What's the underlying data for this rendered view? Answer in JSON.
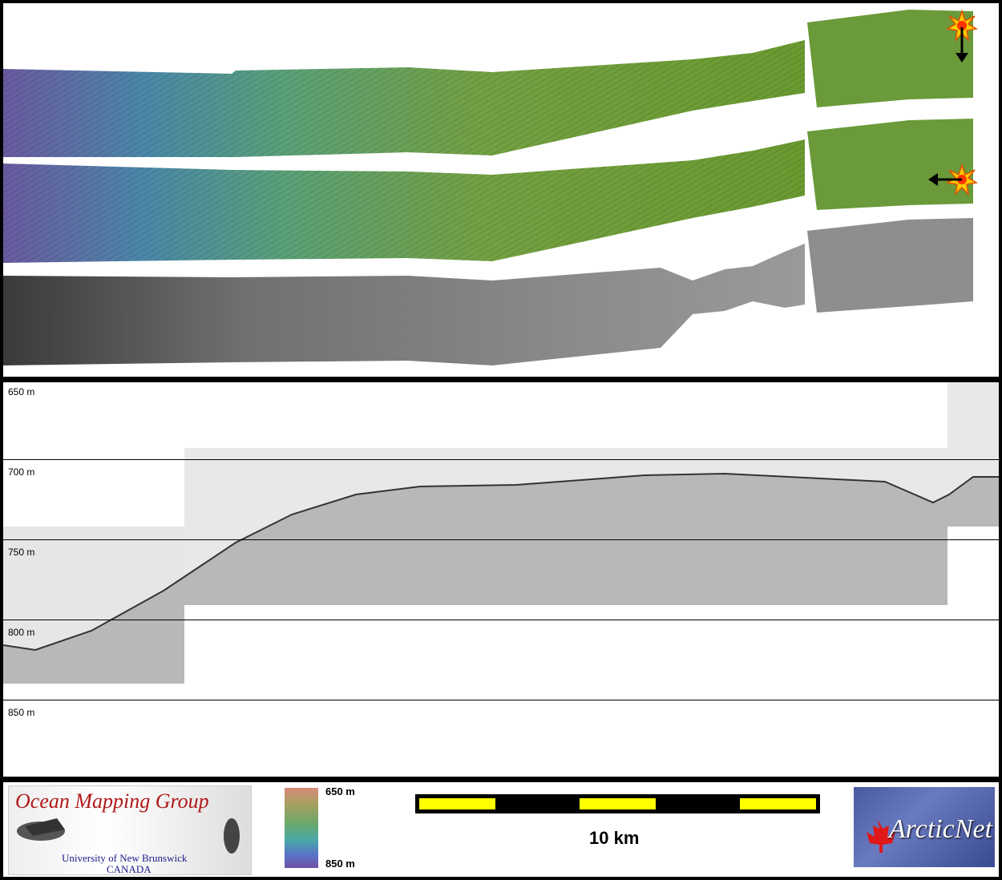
{
  "profile": {
    "depth_labels": [
      "650 m",
      "700 m",
      "750 m",
      "800 m",
      "850 m"
    ]
  },
  "footer": {
    "omg_logo": {
      "title": "Ocean Mapping Group",
      "subtitle_line1": "University of New Brunswick",
      "subtitle_line2": "CANADA"
    },
    "colorbar": {
      "top_label": "650 m",
      "bottom_label": "850 m"
    },
    "scale": {
      "label": "10 km"
    },
    "arcticnet_logo": {
      "text": "ArcticNet"
    }
  },
  "colors": {
    "bathy_deep": "#7a5aa8",
    "bathy_mid": "#4aa0a0",
    "bathy_shallow": "#6a9a3a",
    "scale_yellow": "#ffff00",
    "omg_red": "#b01818",
    "omg_blue": "#1a1a8a"
  },
  "icons": [
    "sun-marker-icon",
    "arrow-down-icon",
    "arrow-left-icon",
    "maple-leaf-icon"
  ]
}
